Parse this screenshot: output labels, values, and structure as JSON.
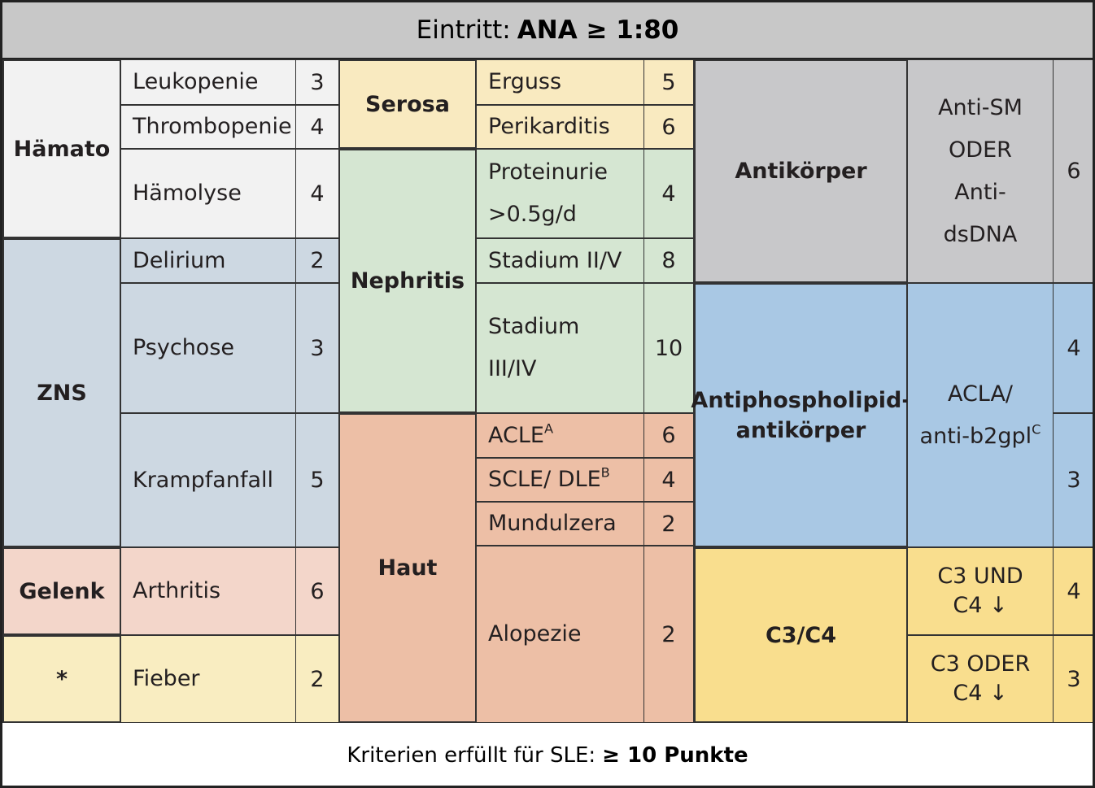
{
  "header": {
    "label": "Eintritt:",
    "criterion": "ANA  ≥ 1:80"
  },
  "groups": [
    {
      "label": [
        "Hämato"
      ],
      "items": [
        {
          "label": [
            "Leukopenie"
          ],
          "points": [
            3
          ]
        },
        {
          "label": [
            "Thrombopenie"
          ],
          "points": [
            4
          ]
        },
        {
          "label": [
            "Hämolyse"
          ],
          "points": [
            4
          ]
        }
      ]
    },
    {
      "label": [
        "ZNS"
      ],
      "items": [
        {
          "label": [
            "Delirium"
          ],
          "points": [
            2
          ]
        },
        {
          "label": [
            "Psychose"
          ],
          "points": [
            3
          ]
        },
        {
          "label": [
            "Krampfanfall"
          ],
          "points": [
            5
          ]
        }
      ]
    },
    {
      "label": [
        "Gelenk"
      ],
      "items": [
        {
          "label": [
            "Arthritis"
          ],
          "points": [
            6
          ]
        }
      ]
    },
    {
      "label": [
        "*"
      ],
      "items": [
        {
          "label": [
            "Fieber"
          ],
          "points": [
            2
          ]
        }
      ]
    },
    {
      "label": [
        "Serosa"
      ],
      "items": [
        {
          "label": [
            "Erguss"
          ],
          "points": [
            5
          ]
        },
        {
          "label": [
            "Perikarditis"
          ],
          "points": [
            6
          ]
        }
      ]
    },
    {
      "label": [
        "Nephritis"
      ],
      "items": [
        {
          "label": [
            "Proteinurie",
            ">0.5g/d"
          ],
          "points": [
            4
          ]
        },
        {
          "label": [
            "Stadium II/V"
          ],
          "points": [
            8
          ]
        },
        {
          "label": [
            "Stadium",
            "III/IV"
          ],
          "points": [
            10
          ]
        }
      ]
    },
    {
      "label": [
        "Haut"
      ],
      "items": [
        {
          "label": [
            "ACLE"
          ],
          "sup": "A",
          "points": [
            6
          ]
        },
        {
          "label": [
            "SCLE/ DLE"
          ],
          "sup": "B",
          "points": [
            4
          ]
        },
        {
          "label": [
            "Mundulzera"
          ],
          "points": [
            2
          ]
        },
        {
          "label": [
            "Alopezie"
          ],
          "points": [
            2
          ]
        }
      ]
    },
    {
      "label": [
        "Antikörper"
      ],
      "items": [
        {
          "label": [
            "Anti-SM",
            "ODER",
            "Anti-",
            "dsDNA"
          ],
          "points": [
            6
          ]
        }
      ]
    },
    {
      "label": [
        "Antiphospholipid-",
        "antikörper"
      ],
      "items": [
        {
          "label": [
            "ACLA/",
            "anti-b2gpl"
          ],
          "sup": "C",
          "points": [
            4,
            3
          ]
        }
      ]
    },
    {
      "label": [
        "C3/C4"
      ],
      "items": [
        {
          "label": [
            "C3 UND",
            "C4 ↓"
          ],
          "points": [
            4
          ]
        },
        {
          "label": [
            "C3 ODER",
            "C4 ↓"
          ],
          "points": [
            3
          ]
        }
      ]
    }
  ],
  "footer": {
    "label": "Kriterien erfüllt für SLE:",
    "criterion": "≥ 10 Punkte"
  }
}
